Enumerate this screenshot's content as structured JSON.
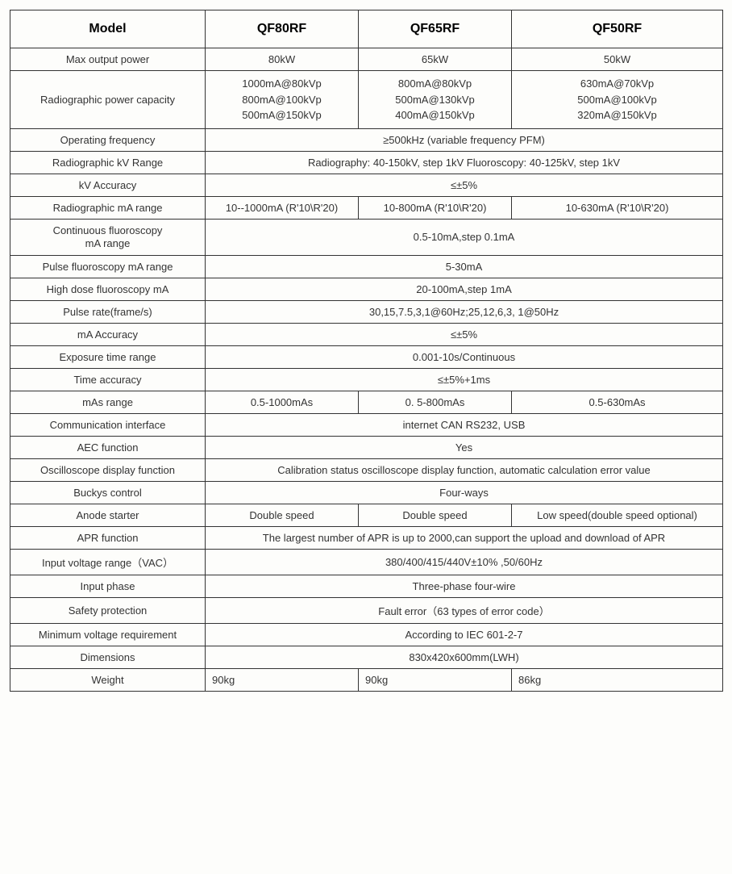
{
  "headers": [
    "Model",
    "QF80RF",
    "QF65RF",
    "QF50RF"
  ],
  "rows": [
    {
      "label": "Max output power",
      "cells": [
        "80kW",
        "65kW",
        "50kW"
      ]
    },
    {
      "label": "Radiographic power capacity",
      "cells": [
        "1000mA@80kVp\n800mA@100kVp\n500mA@150kVp",
        "800mA@80kVp\n500mA@130kVp\n400mA@150kVp",
        "630mA@70kVp\n500mA@100kVp\n320mA@150kVp"
      ]
    },
    {
      "label": "Operating frequency",
      "merged": "≥500kHz (variable frequency PFM)"
    },
    {
      "label": "Radiographic kV Range",
      "merged": "Radiography: 40-150kV, step 1kV      Fluoroscopy: 40-125kV, step 1kV"
    },
    {
      "label": "kV Accuracy",
      "merged": "≤±5%"
    },
    {
      "label": "Radiographic mA range",
      "cells": [
        "10--1000mA (R'10\\R'20)",
        "10-800mA (R'10\\R'20)",
        "10-630mA (R'10\\R'20)"
      ]
    },
    {
      "label": "Continuous fluoroscopy\nmA range",
      "merged": "0.5-10mA,step 0.1mA"
    },
    {
      "label": "Pulse fluoroscopy mA range",
      "merged": "5-30mA"
    },
    {
      "label": "High dose fluoroscopy mA",
      "merged": "20-100mA,step 1mA"
    },
    {
      "label": "Pulse rate(frame/s)",
      "merged": "30,15,7.5,3,1@60Hz;25,12,6,3, 1@50Hz"
    },
    {
      "label": "mA Accuracy",
      "merged": "≤±5%"
    },
    {
      "label": "Exposure time range",
      "merged": "0.001-10s/Continuous"
    },
    {
      "label": "Time accuracy",
      "merged": "≤±5%+1ms"
    },
    {
      "label": "mAs range",
      "cells": [
        "0.5-1000mAs",
        "0. 5-800mAs",
        "0.5-630mAs"
      ]
    },
    {
      "label": "Communication interface",
      "merged": "internet   CAN   RS232, USB"
    },
    {
      "label": "AEC function",
      "merged": "Yes"
    },
    {
      "label": "Oscilloscope display function",
      "merged": "Calibration status oscilloscope display function, automatic calculation error value"
    },
    {
      "label": "Buckys control",
      "merged": "Four-ways"
    },
    {
      "label": "Anode starter",
      "cells": [
        "Double speed",
        "Double speed",
        "Low speed(double speed optional)"
      ]
    },
    {
      "label": "APR function",
      "merged": "The largest number of APR is up to 2000,can support the upload and download of APR"
    },
    {
      "label": "Input voltage range（VAC）",
      "merged": "380/400/415/440V±10%  ,50/60Hz"
    },
    {
      "label": "Input   phase",
      "merged": "Three-phase four-wire"
    },
    {
      "label": "Safety protection",
      "merged": "Fault error（63 types of error code）"
    },
    {
      "label": "Minimum voltage requirement",
      "merged": "According to IEC 601-2-7"
    },
    {
      "label": "Dimensions",
      "merged": "830x420x600mm(LWH)"
    },
    {
      "label": "Weight",
      "cells": [
        "90kg",
        "90kg",
        "86kg"
      ],
      "leftAlign": true
    }
  ],
  "style": {
    "border_color": "#333333",
    "background": "#fdfdfb",
    "header_fontsize": 16,
    "body_fontsize": 13,
    "font_family": "Arial"
  }
}
